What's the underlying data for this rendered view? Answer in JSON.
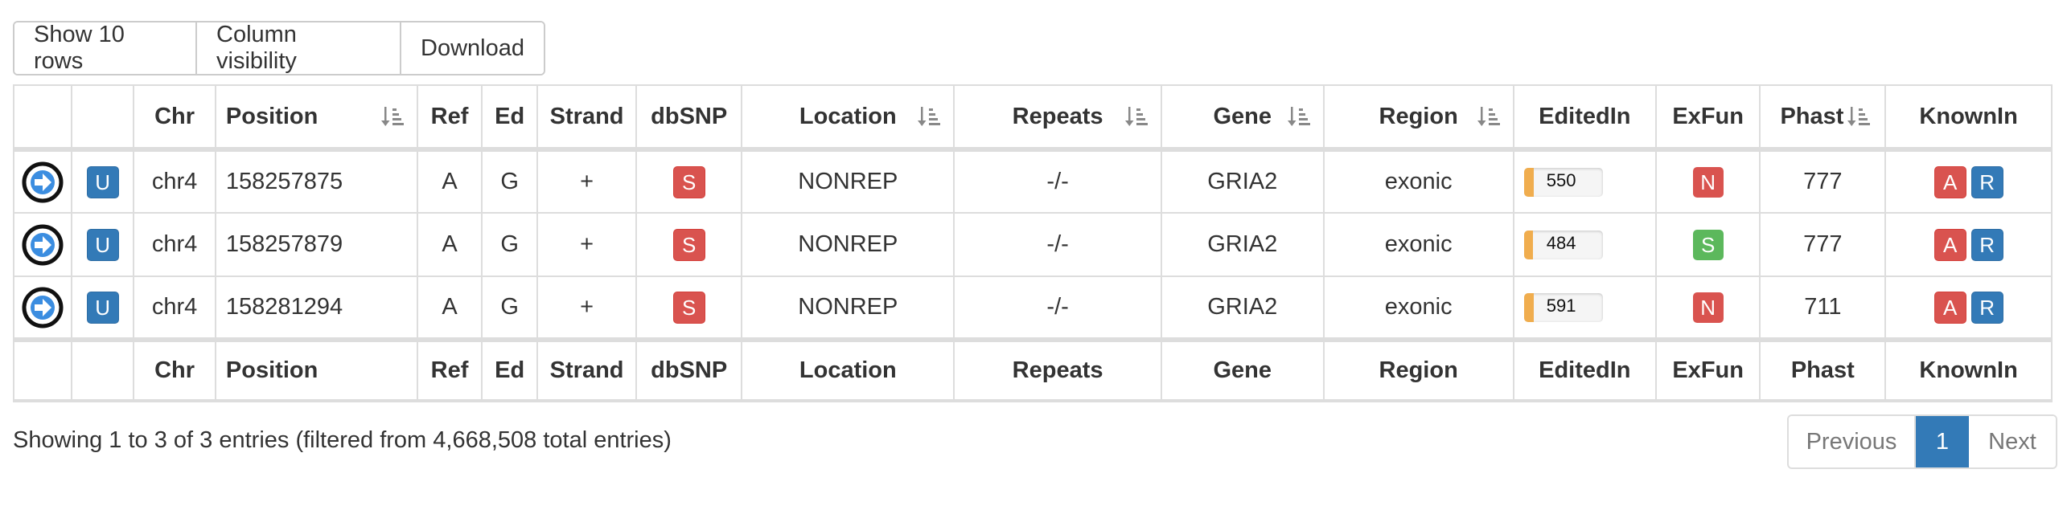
{
  "toolbar": {
    "show_rows": "Show 10 rows",
    "column_visibility": "Column visibility",
    "download": "Download"
  },
  "columns": {
    "chr": "Chr",
    "position": "Position",
    "ref": "Ref",
    "ed": "Ed",
    "strand": "Strand",
    "dbsnp": "dbSNP",
    "location": "Location",
    "repeats": "Repeats",
    "gene": "Gene",
    "region": "Region",
    "editedin": "EditedIn",
    "exfun": "ExFun",
    "phast": "Phast",
    "knownin": "KnownIn"
  },
  "rows": [
    {
      "u": "U",
      "chr": "chr4",
      "position": "158257875",
      "ref": "A",
      "ed": "G",
      "strand": "+",
      "dbsnp": "S",
      "location": "NONREP",
      "repeats": "-/-",
      "gene": "GRIA2",
      "region": "exonic",
      "editedin": "550",
      "editedin_fraction": 0.12,
      "exfun": "N",
      "exfun_color": "#d9534f",
      "phast": "777",
      "known_a": "A",
      "known_r": "R"
    },
    {
      "u": "U",
      "chr": "chr4",
      "position": "158257879",
      "ref": "A",
      "ed": "G",
      "strand": "+",
      "dbsnp": "S",
      "location": "NONREP",
      "repeats": "-/-",
      "gene": "GRIA2",
      "region": "exonic",
      "editedin": "484",
      "editedin_fraction": 0.11,
      "exfun": "S",
      "exfun_color": "#5cb85c",
      "phast": "777",
      "known_a": "A",
      "known_r": "R"
    },
    {
      "u": "U",
      "chr": "chr4",
      "position": "158281294",
      "ref": "A",
      "ed": "G",
      "strand": "+",
      "dbsnp": "S",
      "location": "NONREP",
      "repeats": "-/-",
      "gene": "GRIA2",
      "region": "exonic",
      "editedin": "591",
      "editedin_fraction": 0.13,
      "exfun": "N",
      "exfun_color": "#d9534f",
      "phast": "711",
      "known_a": "A",
      "known_r": "R"
    }
  ],
  "info": "Showing 1 to 3 of 3 entries (filtered from 4,668,508 total entries)",
  "pager": {
    "previous": "Previous",
    "current": "1",
    "next": "Next"
  },
  "colors": {
    "primary": "#337ab7",
    "danger": "#d9534f",
    "success": "#5cb85c",
    "warning": "#f0ad4e"
  },
  "icons": {
    "row_action": "circled-arrow-right-icon",
    "sort": "sort-descending-icon"
  }
}
